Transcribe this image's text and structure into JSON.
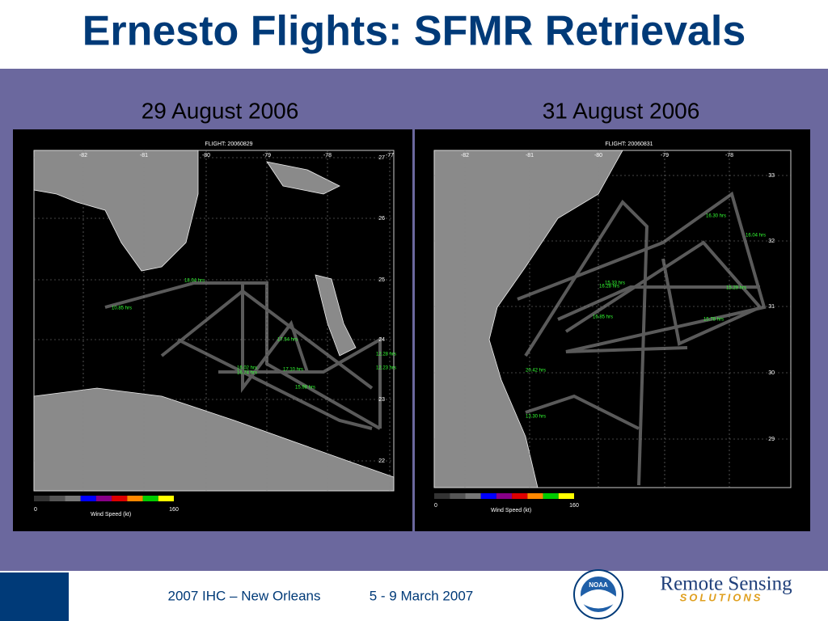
{
  "header": {
    "title": "Ernesto Flights: SFMR Retrievals"
  },
  "panels": [
    {
      "date": "29 August 2006",
      "flight": "FLIGHT:   20060829",
      "lon_labels": [
        "-82",
        "-81",
        "-80",
        "-79",
        "-78",
        "-77"
      ],
      "lat_labels": [
        "27",
        "26",
        "25",
        "24",
        "23",
        "22"
      ],
      "time_labels": [
        "18.04 hrs",
        "10.85 hrs",
        "17.54 hrs",
        "12.28 hrs",
        "12.23 hrs",
        "16.02 hrs",
        "16.74 hrs",
        "17.10 hrs",
        "15.98 hrs"
      ],
      "colorbar": {
        "min": "0",
        "max": "160",
        "label": "Wind Speed (kt)"
      }
    },
    {
      "date": "31 August 2006",
      "flight": "FLIGHT:   20060831",
      "lon_labels": [
        "-82",
        "-81",
        "-80",
        "-79",
        "-78"
      ],
      "lat_labels": [
        "33",
        "32",
        "31",
        "30",
        "29"
      ],
      "time_labels": [
        "16.30 hrs",
        "16.04 hrs",
        "15.33 hrs",
        "15.29 hrs",
        "16.28 hrs",
        "15.78 hrs",
        "16.85 hrs",
        "20.42 hrs",
        "13.30 hrs"
      ],
      "colorbar": {
        "min": "0",
        "max": "160",
        "label": "Wind Speed (kt)"
      }
    }
  ],
  "footer": {
    "event": "2007 IHC – New Orleans",
    "dates": "5 - 9 March 2007",
    "logo": "NOAA",
    "brand": "Remote Sensing",
    "brand_sub": "SOLUTIONS"
  }
}
